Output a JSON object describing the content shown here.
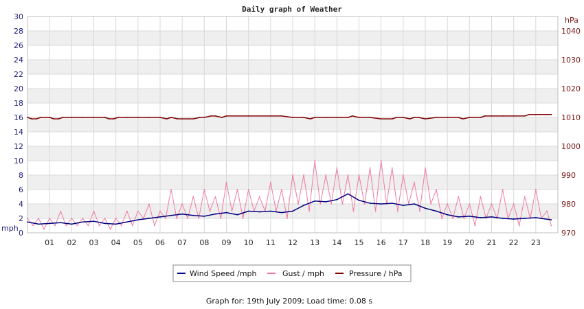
{
  "chart_data": {
    "type": "line",
    "title": "Daily graph of Weather",
    "x_tick_labels": [
      "01",
      "02",
      "03",
      "04",
      "05",
      "06",
      "07",
      "08",
      "09",
      "10",
      "11",
      "12",
      "13",
      "14",
      "15",
      "16",
      "17",
      "18",
      "19",
      "20",
      "21",
      "22",
      "23"
    ],
    "left_axis": {
      "unit": "mph",
      "range": [
        0,
        30
      ],
      "ticks": [
        0,
        2,
        4,
        6,
        8,
        10,
        12,
        14,
        16,
        18,
        20,
        22,
        24,
        26,
        28,
        30
      ]
    },
    "right_axis": {
      "unit": "hPa",
      "range": [
        970,
        1045
      ],
      "ticks": [
        970,
        980,
        990,
        1000,
        1010,
        1020,
        1030,
        1040
      ]
    },
    "grid": true,
    "legend_position": "bottom",
    "colors": {
      "wind": "#000080",
      "gust": "#f07aa0",
      "pressure": "#800000",
      "left_text": "#1a1a7a",
      "right_text": "#7a1212"
    },
    "series": [
      {
        "name": "Wind Speed /mph",
        "axis": "left",
        "x_hours": [
          0,
          0.5,
          1,
          1.5,
          2,
          2.5,
          3,
          3.5,
          4,
          4.5,
          5,
          5.5,
          6,
          6.5,
          7,
          7.5,
          8,
          8.5,
          9,
          9.5,
          10,
          10.5,
          11,
          11.5,
          12,
          12.5,
          13,
          13.5,
          14,
          14.5,
          15,
          15.5,
          16,
          16.5,
          17,
          17.5,
          18,
          18.5,
          19,
          19.5,
          20,
          20.5,
          21,
          21.5,
          22,
          22.5,
          23,
          23.7
        ],
        "values": [
          1.5,
          1.2,
          1.3,
          1.4,
          1.2,
          1.5,
          1.6,
          1.3,
          1.2,
          1.5,
          1.8,
          2,
          2.2,
          2.4,
          2.6,
          2.4,
          2.3,
          2.6,
          2.8,
          2.5,
          3,
          2.9,
          3,
          2.8,
          3,
          3.8,
          4.4,
          4.3,
          4.6,
          5.4,
          4.5,
          4.1,
          4,
          4.1,
          3.8,
          4,
          3.4,
          3,
          2.5,
          2.2,
          2.3,
          2.1,
          2.2,
          2,
          1.9,
          2,
          2.1,
          1.8
        ]
      },
      {
        "name": "Gust / mph",
        "axis": "left",
        "x_hours": [
          0,
          0.25,
          0.5,
          0.75,
          1,
          1.25,
          1.5,
          1.75,
          2,
          2.25,
          2.5,
          2.75,
          3,
          3.25,
          3.5,
          3.75,
          4,
          4.25,
          4.5,
          4.75,
          5,
          5.25,
          5.5,
          5.75,
          6,
          6.25,
          6.5,
          6.75,
          7,
          7.25,
          7.5,
          7.75,
          8,
          8.25,
          8.5,
          8.75,
          9,
          9.25,
          9.5,
          9.75,
          10,
          10.25,
          10.5,
          10.75,
          11,
          11.25,
          11.5,
          11.75,
          12,
          12.25,
          12.5,
          12.75,
          13,
          13.25,
          13.5,
          13.75,
          14,
          14.25,
          14.5,
          14.75,
          15,
          15.25,
          15.5,
          15.75,
          16,
          16.25,
          16.5,
          16.75,
          17,
          17.25,
          17.5,
          17.75,
          18,
          18.25,
          18.5,
          18.75,
          19,
          19.25,
          19.5,
          19.75,
          20,
          20.25,
          20.5,
          20.75,
          21,
          21.25,
          21.5,
          21.75,
          22,
          22.25,
          22.5,
          22.75,
          23,
          23.25,
          23.5,
          23.7
        ],
        "values": [
          2,
          1,
          2,
          0.5,
          2,
          1,
          3,
          1,
          2,
          1,
          2,
          1,
          3,
          1,
          2,
          0.5,
          2,
          1,
          3,
          1,
          3,
          2,
          4,
          1,
          3,
          2,
          6,
          2,
          4,
          2,
          5,
          2,
          6,
          3,
          5,
          2,
          7,
          3,
          6,
          2,
          6,
          3,
          5,
          3,
          7,
          3,
          6,
          2,
          8,
          4,
          8,
          3,
          10,
          4,
          8,
          4,
          9,
          4,
          8,
          3,
          8,
          4,
          9,
          3,
          10,
          4,
          9,
          3,
          8,
          4,
          7,
          3,
          9,
          4,
          6,
          2,
          4,
          2,
          5,
          2,
          4,
          1,
          5,
          2,
          4,
          2,
          6,
          2,
          4,
          1,
          5,
          2,
          6,
          2,
          3,
          1
        ]
      },
      {
        "name": "Pressure / hPa",
        "axis": "right",
        "x_hours": [
          0,
          0.2,
          0.4,
          0.6,
          1,
          1.2,
          1.4,
          1.6,
          2,
          2.5,
          3,
          3.5,
          3.7,
          3.9,
          4.1,
          4.5,
          5,
          5.5,
          6,
          6.3,
          6.5,
          6.8,
          7,
          7.3,
          7.5,
          7.8,
          8,
          8.3,
          8.5,
          8.8,
          9,
          10,
          11,
          11.5,
          12,
          12.5,
          12.8,
          13,
          13.5,
          14,
          14.5,
          14.7,
          15,
          15.5,
          16,
          16.5,
          16.7,
          17,
          17.3,
          17.5,
          17.7,
          18,
          18.5,
          19,
          19.5,
          19.7,
          20,
          20.5,
          20.7,
          21,
          21.5,
          22,
          22.5,
          22.7,
          23,
          23.7
        ],
        "values": [
          1010,
          1009.5,
          1009.5,
          1010,
          1010,
          1009.5,
          1009.5,
          1010,
          1010,
          1010,
          1010,
          1010,
          1009.5,
          1009.5,
          1010,
          1010,
          1010,
          1010,
          1010,
          1009.5,
          1010,
          1009.5,
          1009.5,
          1009.5,
          1009.5,
          1010,
          1010,
          1010.5,
          1010.5,
          1010,
          1010.5,
          1010.5,
          1010.5,
          1010.5,
          1010,
          1010,
          1009.5,
          1010,
          1010,
          1010,
          1010,
          1010.5,
          1010,
          1010,
          1009.5,
          1009.5,
          1010,
          1010,
          1009.5,
          1010,
          1010,
          1009.5,
          1010,
          1010,
          1010,
          1009.5,
          1010,
          1010,
          1010.5,
          1010.5,
          1010.5,
          1010.5,
          1010.5,
          1011,
          1011,
          1011
        ]
      }
    ]
  },
  "footer": {
    "text": "Graph for: 19th July 2009; Load time: 0.08 s"
  }
}
